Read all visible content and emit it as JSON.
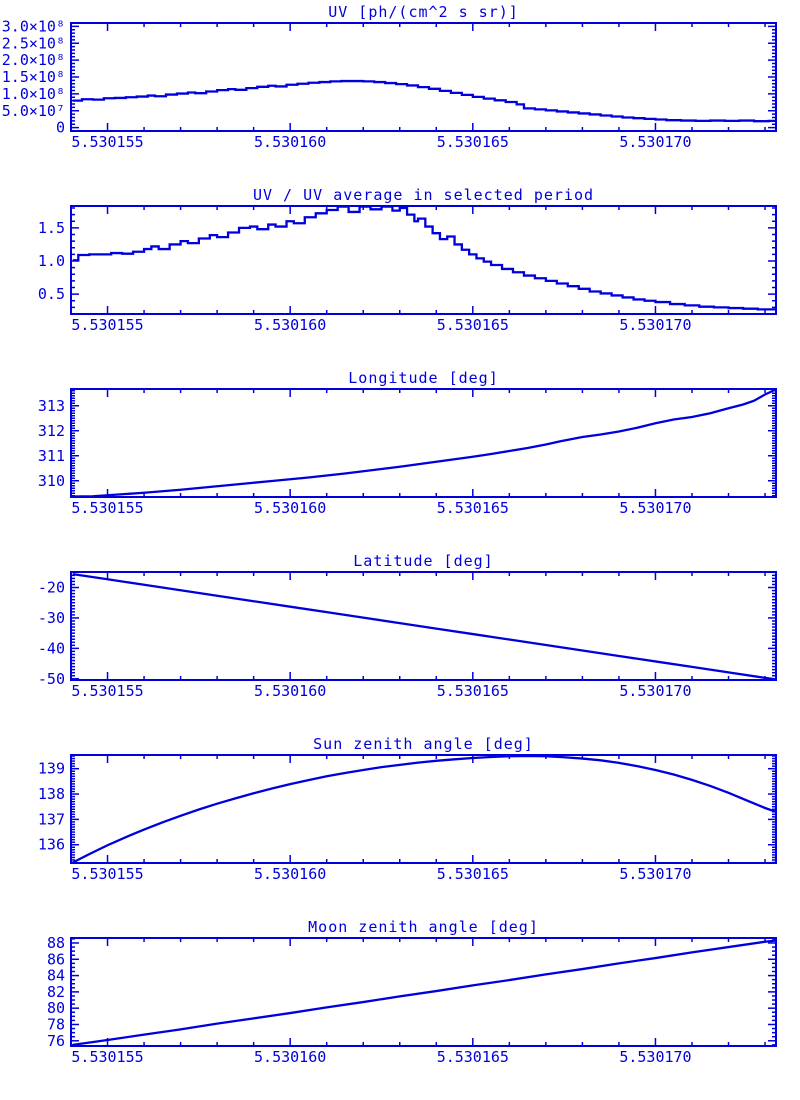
{
  "style": {
    "accent": "#0000dd",
    "background": "#ffffff"
  },
  "chart_data": [
    {
      "type": "line",
      "title": "UV [ph/(cm^2 s sr)]",
      "step": true,
      "x_range": [
        5.530154,
        5.5301733
      ],
      "y_range": [
        -10000000.0,
        310000000.0
      ],
      "x_ticks": {
        "values": [
          5.530155,
          5.53016,
          5.530165,
          5.53017
        ],
        "labels": [
          "5.530155",
          "5.530160",
          "5.530165",
          "5.530170"
        ]
      },
      "x_minor_step": 1e-06,
      "y_ticks": {
        "values": [
          0,
          50000000.0,
          100000000.0,
          150000000.0,
          200000000.0,
          250000000.0,
          300000000.0
        ],
        "labels": [
          "0",
          "5.0×10⁷",
          "1.0×10⁸",
          "1.5×10⁸",
          "2.0×10⁸",
          "2.5×10⁸",
          "3.0×10⁸"
        ]
      },
      "y_minor_step": 10000000.0,
      "x": [
        5.53015405,
        5.5301543,
        5.5301546,
        5.5301549,
        5.5301552,
        5.5301555,
        5.5301558,
        5.5301561,
        5.5301563,
        5.5301566,
        5.5301569,
        5.5301572,
        5.5301574,
        5.5301577,
        5.530158,
        5.5301583,
        5.5301585,
        5.5301588,
        5.5301591,
        5.5301594,
        5.5301596,
        5.5301599,
        5.5301602,
        5.5301605,
        5.5301608,
        5.5301611,
        5.5301614,
        5.5301617,
        5.530162,
        5.5301623,
        5.5301626,
        5.5301629,
        5.5301632,
        5.5301635,
        5.5301638,
        5.5301641,
        5.5301644,
        5.5301647,
        5.530165,
        5.5301653,
        5.5301656,
        5.5301659,
        5.5301662,
        5.5301664,
        5.5301667,
        5.530167,
        5.5301673,
        5.5301676,
        5.5301679,
        5.5301682,
        5.5301685,
        5.5301688,
        5.5301691,
        5.5301694,
        5.5301697,
        5.53017,
        5.5301703,
        5.5301707,
        5.5301711,
        5.5301715,
        5.5301719,
        5.5301723,
        5.5301727,
        5.5301731,
        5.5301733
      ],
      "y": [
        80000000.0,
        84000000.0,
        83000000.0,
        87000000.0,
        88000000.0,
        90000000.0,
        92000000.0,
        95000000.0,
        93000000.0,
        98000000.0,
        101000000.0,
        104000000.0,
        102000000.0,
        107000000.0,
        111000000.0,
        114000000.0,
        112000000.0,
        117000000.0,
        121000000.0,
        124000000.0,
        122000000.0,
        127000000.0,
        130000000.0,
        133000000.0,
        135000000.0,
        137000000.0,
        138000000.0,
        138000000.0,
        137000000.0,
        135000000.0,
        132000000.0,
        129000000.0,
        125000000.0,
        120000000.0,
        115000000.0,
        109000000.0,
        103000000.0,
        97000000.0,
        91000000.0,
        86000000.0,
        81000000.0,
        76000000.0,
        69000000.0,
        57000000.0,
        54000000.0,
        51000000.0,
        48000000.0,
        45000000.0,
        42000000.0,
        39000000.0,
        36000000.0,
        33000000.0,
        30000000.0,
        28000000.0,
        26000000.0,
        24000000.0,
        22000000.0,
        21000000.0,
        20000000.0,
        21000000.0,
        20000000.0,
        21000000.0,
        19000000.0,
        20000000.0,
        19000000.0
      ]
    },
    {
      "type": "line",
      "title": "UV / UV average in selected period",
      "step": true,
      "x_range": [
        5.530154,
        5.5301733
      ],
      "y_range": [
        0.2,
        1.83
      ],
      "x_ticks": {
        "values": [
          5.530155,
          5.53016,
          5.530165,
          5.53017
        ],
        "labels": [
          "5.530155",
          "5.530160",
          "5.530165",
          "5.530170"
        ]
      },
      "x_minor_step": 1e-06,
      "y_ticks": {
        "values": [
          0.5,
          1.0,
          1.5
        ],
        "labels": [
          "0.5",
          "1.0",
          "1.5"
        ]
      },
      "y_minor_step": 0.1,
      "x": [
        5.53015405,
        5.5301542,
        5.5301545,
        5.5301548,
        5.5301551,
        5.5301554,
        5.5301557,
        5.530156,
        5.5301562,
        5.5301564,
        5.5301567,
        5.530157,
        5.5301572,
        5.5301575,
        5.5301578,
        5.530158,
        5.5301583,
        5.5301586,
        5.5301589,
        5.5301591,
        5.5301594,
        5.5301596,
        5.5301599,
        5.5301601,
        5.5301604,
        5.5301607,
        5.530161,
        5.5301613,
        5.5301616,
        5.5301619,
        5.5301622,
        5.5301625,
        5.5301628,
        5.530163,
        5.5301632,
        5.5301634,
        5.5301635,
        5.5301637,
        5.5301639,
        5.5301641,
        5.5301643,
        5.5301645,
        5.5301647,
        5.5301649,
        5.5301651,
        5.5301653,
        5.5301655,
        5.5301658,
        5.5301661,
        5.5301664,
        5.5301667,
        5.530167,
        5.5301673,
        5.5301676,
        5.5301679,
        5.5301682,
        5.5301685,
        5.5301688,
        5.5301691,
        5.5301694,
        5.5301697,
        5.53017,
        5.5301704,
        5.5301708,
        5.5301712,
        5.5301716,
        5.530172,
        5.5301724,
        5.5301728,
        5.5301731,
        5.5301733
      ],
      "y": [
        1.01,
        1.09,
        1.1,
        1.1,
        1.12,
        1.11,
        1.14,
        1.18,
        1.22,
        1.18,
        1.25,
        1.3,
        1.27,
        1.34,
        1.39,
        1.36,
        1.43,
        1.5,
        1.52,
        1.48,
        1.55,
        1.52,
        1.6,
        1.57,
        1.66,
        1.72,
        1.77,
        1.82,
        1.74,
        1.82,
        1.78,
        1.82,
        1.76,
        1.8,
        1.7,
        1.6,
        1.64,
        1.52,
        1.42,
        1.33,
        1.37,
        1.25,
        1.17,
        1.1,
        1.04,
        0.99,
        0.94,
        0.88,
        0.83,
        0.78,
        0.74,
        0.7,
        0.66,
        0.62,
        0.58,
        0.54,
        0.51,
        0.48,
        0.45,
        0.42,
        0.4,
        0.38,
        0.35,
        0.33,
        0.31,
        0.3,
        0.29,
        0.28,
        0.27,
        0.27,
        0.26
      ]
    },
    {
      "type": "line",
      "title": "Longitude [deg]",
      "step": false,
      "x_range": [
        5.530154,
        5.5301733
      ],
      "y_range": [
        309.35,
        313.67
      ],
      "x_ticks": {
        "values": [
          5.530155,
          5.53016,
          5.530165,
          5.53017
        ],
        "labels": [
          "5.530155",
          "5.530160",
          "5.530165",
          "5.530170"
        ]
      },
      "x_minor_step": 1e-06,
      "y_ticks": {
        "values": [
          310,
          311,
          312,
          313
        ],
        "labels": [
          "310",
          "311",
          "312",
          "313"
        ]
      },
      "y_minor_step": 0.1,
      "x": [
        5.53015405,
        5.5301546,
        5.530155,
        5.5301555,
        5.530156,
        5.5301565,
        5.530157,
        5.5301575,
        5.530158,
        5.5301585,
        5.530159,
        5.5301595,
        5.53016,
        5.5301605,
        5.530161,
        5.5301615,
        5.530162,
        5.5301625,
        5.530163,
        5.5301635,
        5.530164,
        5.5301645,
        5.530165,
        5.5301655,
        5.530166,
        5.5301665,
        5.530167,
        5.5301674,
        5.530168,
        5.5301685,
        5.530169,
        5.5301695,
        5.53017,
        5.5301705,
        5.530171,
        5.5301715,
        5.530172,
        5.5301724,
        5.5301727,
        5.530173,
        5.53017315,
        5.5301733
      ],
      "y": [
        309.37,
        309.38,
        309.42,
        309.47,
        309.52,
        309.58,
        309.64,
        309.71,
        309.78,
        309.85,
        309.92,
        309.99,
        310.06,
        310.13,
        310.21,
        310.29,
        310.38,
        310.47,
        310.56,
        310.66,
        310.76,
        310.86,
        310.96,
        311.07,
        311.19,
        311.31,
        311.45,
        311.58,
        311.75,
        311.85,
        311.97,
        312.12,
        312.3,
        312.45,
        312.55,
        312.7,
        312.9,
        313.05,
        313.2,
        313.45,
        313.55,
        313.67
      ]
    },
    {
      "type": "line",
      "title": "Latitude [deg]",
      "step": false,
      "x_range": [
        5.530154,
        5.5301733
      ],
      "y_range": [
        -50.4,
        -14.9
      ],
      "x_ticks": {
        "values": [
          5.530155,
          5.53016,
          5.530165,
          5.53017
        ],
        "labels": [
          "5.530155",
          "5.530160",
          "5.530165",
          "5.530170"
        ]
      },
      "x_minor_step": 1e-06,
      "y_ticks": {
        "values": [
          -50,
          -40,
          -30,
          -20
        ],
        "labels": [
          "-50",
          "-40",
          "-30",
          "-20"
        ]
      },
      "y_minor_step": 1,
      "x": [
        5.53015405,
        5.530155,
        5.530156,
        5.530157,
        5.530158,
        5.530159,
        5.53016,
        5.530161,
        5.530162,
        5.530163,
        5.530164,
        5.530165,
        5.530166,
        5.530167,
        5.530168,
        5.530169,
        5.53017,
        5.530171,
        5.530172,
        5.530173,
        5.5301733
      ],
      "y": [
        -15.6,
        -17.3,
        -19.1,
        -20.9,
        -22.7,
        -24.5,
        -26.3,
        -28.1,
        -29.9,
        -31.7,
        -33.5,
        -35.3,
        -37.1,
        -38.9,
        -40.7,
        -42.5,
        -44.3,
        -46.1,
        -47.9,
        -49.7,
        -50.2
      ]
    },
    {
      "type": "line",
      "title": "Sun zenith angle [deg]",
      "step": false,
      "x_range": [
        5.530154,
        5.5301733
      ],
      "y_range": [
        135.28,
        139.54
      ],
      "x_ticks": {
        "values": [
          5.530155,
          5.53016,
          5.530165,
          5.53017
        ],
        "labels": [
          "5.530155",
          "5.530160",
          "5.530165",
          "5.530170"
        ]
      },
      "x_minor_step": 1e-06,
      "y_ticks": {
        "values": [
          136,
          137,
          138,
          139
        ],
        "labels": [
          "136",
          "137",
          "138",
          "139"
        ]
      },
      "y_minor_step": 0.1,
      "x": [
        5.53015405,
        5.5301545,
        5.530155,
        5.5301555,
        5.530156,
        5.5301565,
        5.530157,
        5.5301575,
        5.530158,
        5.5301585,
        5.530159,
        5.5301595,
        5.53016,
        5.5301605,
        5.530161,
        5.5301615,
        5.530162,
        5.5301625,
        5.530163,
        5.5301635,
        5.530164,
        5.5301645,
        5.530165,
        5.5301655,
        5.530166,
        5.5301665,
        5.530167,
        5.5301675,
        5.530168,
        5.5301685,
        5.530169,
        5.5301695,
        5.53017,
        5.5301705,
        5.530171,
        5.5301715,
        5.530172,
        5.5301725,
        5.530173,
        5.5301733
      ],
      "y": [
        135.3,
        135.63,
        135.98,
        136.3,
        136.6,
        136.88,
        137.14,
        137.39,
        137.62,
        137.83,
        138.03,
        138.22,
        138.39,
        138.55,
        138.7,
        138.83,
        138.95,
        139.06,
        139.15,
        139.24,
        139.31,
        139.37,
        139.42,
        139.46,
        139.49,
        139.5,
        139.49,
        139.45,
        139.4,
        139.33,
        139.23,
        139.1,
        138.95,
        138.77,
        138.56,
        138.32,
        138.05,
        137.75,
        137.45,
        137.3
      ]
    },
    {
      "type": "line",
      "title": "Moon zenith angle [deg]",
      "step": false,
      "x_range": [
        5.530154,
        5.5301733
      ],
      "y_range": [
        75.36,
        88.61
      ],
      "x_ticks": {
        "values": [
          5.530155,
          5.53016,
          5.530165,
          5.53017
        ],
        "labels": [
          "5.530155",
          "5.530160",
          "5.530165",
          "5.530170"
        ]
      },
      "x_minor_step": 1e-06,
      "y_ticks": {
        "values": [
          76,
          78,
          80,
          82,
          84,
          86,
          88
        ],
        "labels": [
          "76",
          "78",
          "80",
          "82",
          "84",
          "86",
          "88"
        ]
      },
      "y_minor_step": 0.5,
      "x": [
        5.53015405,
        5.530155,
        5.530156,
        5.530157,
        5.530158,
        5.530159,
        5.53016,
        5.530161,
        5.530162,
        5.530163,
        5.530164,
        5.530165,
        5.530166,
        5.530167,
        5.530168,
        5.530169,
        5.53017,
        5.530171,
        5.530172,
        5.530173,
        5.5301733
      ],
      "y": [
        75.5,
        76.1,
        76.75,
        77.4,
        78.1,
        78.75,
        79.4,
        80.1,
        80.75,
        81.45,
        82.1,
        82.8,
        83.45,
        84.15,
        84.8,
        85.5,
        86.15,
        86.85,
        87.5,
        88.15,
        88.3
      ]
    }
  ]
}
